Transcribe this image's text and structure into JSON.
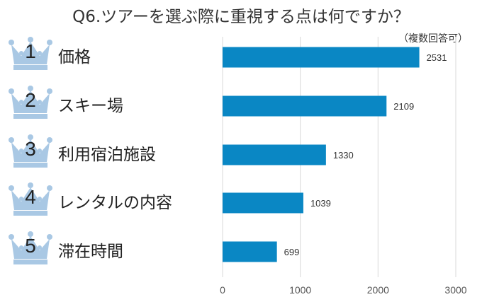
{
  "title": "Q6.ツアーを選ぶ際に重視する点は何ですか？",
  "note": "（複数回答可）",
  "colors": {
    "bar": "#0a87c4",
    "crown": "#a9c8e4",
    "grid": "#d9d9d9"
  },
  "rank_icon": "crown-icon",
  "chart_data": {
    "type": "bar",
    "orientation": "horizontal",
    "title": "Q6.ツアーを選ぶ際に重視する点は何ですか？",
    "categories": [
      "価格",
      "スキー場",
      "利用宿泊施設",
      "レンタルの内容",
      "滞在時間"
    ],
    "ranks": [
      "1",
      "2",
      "3",
      "4",
      "5"
    ],
    "values": [
      2531,
      2109,
      1330,
      1039,
      699
    ],
    "xlim": [
      0,
      3000
    ],
    "xticks": [
      0,
      1000,
      2000,
      3000
    ],
    "grid": true,
    "data_labels": true
  }
}
